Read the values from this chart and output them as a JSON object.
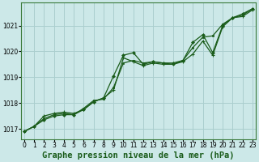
{
  "title": "Graphe pression niveau de la mer (hPa)",
  "background_color": "#cce8e8",
  "grid_color": "#aacece",
  "line_color": "#1a5c1a",
  "marker_color": "#1a5c1a",
  "x_ticks": [
    0,
    1,
    2,
    3,
    4,
    5,
    6,
    7,
    8,
    9,
    10,
    11,
    12,
    13,
    14,
    15,
    16,
    17,
    18,
    19,
    20,
    21,
    22,
    23
  ],
  "y_ticks": [
    1017,
    1018,
    1019,
    1020,
    1021
  ],
  "ylim": [
    1016.6,
    1021.9
  ],
  "xlim": [
    -0.3,
    23.3
  ],
  "line1": [
    1016.9,
    1017.1,
    1017.5,
    1017.6,
    1017.65,
    1017.6,
    1017.75,
    1018.05,
    1018.2,
    1018.5,
    1019.75,
    1019.6,
    1019.45,
    1019.55,
    1019.5,
    1019.5,
    1019.6,
    1019.9,
    1020.4,
    1019.85,
    1020.95,
    1021.3,
    1021.35,
    1021.6
  ],
  "line2": [
    1016.9,
    1017.1,
    1017.4,
    1017.55,
    1017.6,
    1017.55,
    1017.8,
    1018.1,
    1018.15,
    1018.6,
    1019.55,
    1019.65,
    1019.55,
    1019.6,
    1019.55,
    1019.5,
    1019.65,
    1020.15,
    1020.55,
    1020.6,
    1021.05,
    1021.3,
    1021.4,
    1021.65
  ],
  "line3": [
    1016.9,
    1017.1,
    1017.35,
    1017.5,
    1017.55,
    1017.55,
    1017.75,
    1018.05,
    1018.2,
    1019.05,
    1019.85,
    1019.95,
    1019.5,
    1019.6,
    1019.55,
    1019.55,
    1019.65,
    1020.35,
    1020.65,
    1019.95,
    1021.0,
    1021.3,
    1021.45,
    1021.65
  ],
  "title_fontsize": 7.5,
  "tick_fontsize": 5.5
}
